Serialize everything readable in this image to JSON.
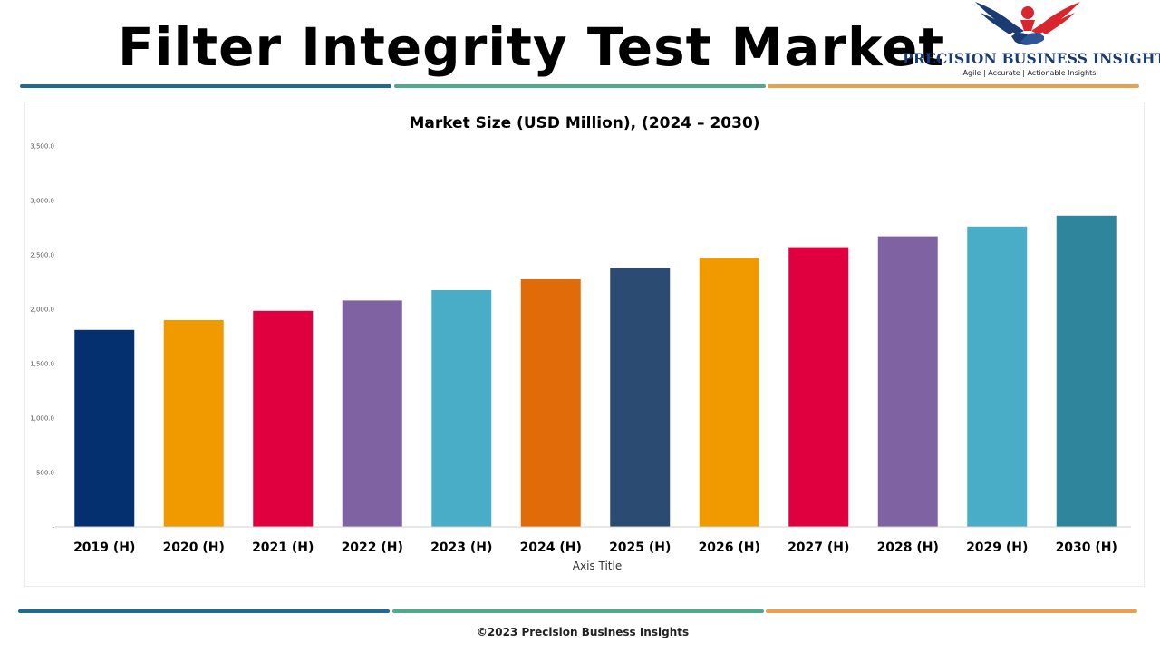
{
  "page": {
    "title": "Filter Integrity Test Market",
    "footer": "©2023 Precision Business Insights"
  },
  "logo": {
    "name": "PRECISION BUSINESS INSIGHTS",
    "tagline": "Agile | Accurate | Actionable Insights",
    "name_color": "#1b3c73",
    "icon": "eagle-handshake-logo-icon"
  },
  "rule_colors": [
    "#1f6a8f",
    "#4fa98b",
    "#e9a04e"
  ],
  "chart_data": {
    "type": "bar",
    "title": "Market Size (USD Million), (2024 – 2030)",
    "xlabel": "Axis Title",
    "ylabel": "",
    "ylim": [
      0,
      3500
    ],
    "yticks": [
      0,
      500,
      1000,
      1500,
      2000,
      2500,
      3000,
      3500
    ],
    "ytick_labels": [
      "-",
      "500.0",
      "1,000.0",
      "1,500.0",
      "2,000.0",
      "2,500.0",
      "3,000.0",
      "3,500.0"
    ],
    "grid": false,
    "legend": "none",
    "categories": [
      "2019 (H)",
      "2020 (H)",
      "2021 (H)",
      "2022 (H)",
      "2023 (H)",
      "2024 (H)",
      "2025 (H)",
      "2026 (H)",
      "2027 (H)",
      "2028 (H)",
      "2029 (H)",
      "2030 (H)"
    ],
    "values": [
      1810,
      1900,
      1985,
      2080,
      2175,
      2275,
      2380,
      2470,
      2570,
      2670,
      2760,
      2860
    ],
    "colors": [
      "#04306f",
      "#f09a00",
      "#e0003f",
      "#7f62a2",
      "#4aadc7",
      "#e06b08",
      "#2b4b73",
      "#f09a00",
      "#e0003f",
      "#7f62a2",
      "#4aadc7",
      "#2f869c"
    ]
  }
}
